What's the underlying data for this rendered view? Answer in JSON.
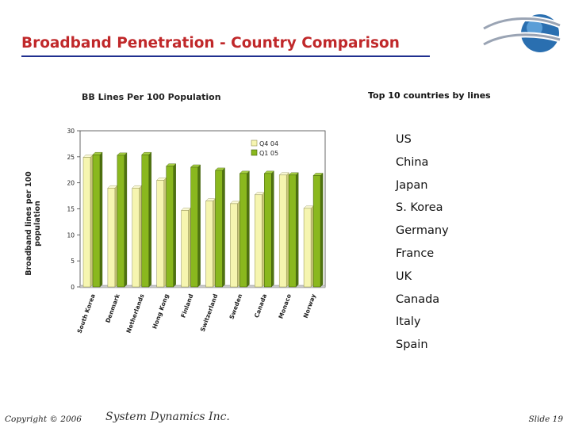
{
  "slide": {
    "title": "Broadband Penetration - Country Comparison"
  },
  "top10": {
    "title": "Top 10 countries by lines",
    "countries": [
      "US",
      "China",
      "Japan",
      "S. Korea",
      "Germany",
      "France",
      "UK",
      "Canada",
      "Italy",
      "Spain"
    ]
  },
  "footer": {
    "copyright": "Copyright © 2006",
    "company": "System Dynamics Inc.",
    "slide": "Slide 19"
  },
  "colors": {
    "title": "#c0282a",
    "rule": "#1f2f8f",
    "q4_04_bar": "#f6f5b0",
    "q1_05_bar": "#8ab81e",
    "logo_blue": "#2a6fb0"
  },
  "chart_data": {
    "type": "bar",
    "title": "BB Lines Per 100 Population",
    "ylabel": "Broadband lines per 100 population",
    "xlabel": "",
    "categories": [
      "South Korea",
      "Denmark",
      "Netherlands",
      "Hong Kong",
      "Finland",
      "Switzerland",
      "Sweden",
      "Canada",
      "Monaco",
      "Norway"
    ],
    "series": [
      {
        "name": "Q4 04",
        "values": [
          24.9,
          19.0,
          19.0,
          20.5,
          14.7,
          16.5,
          16.0,
          17.7,
          21.5,
          15.1
        ]
      },
      {
        "name": "Q1 05",
        "values": [
          25.4,
          25.3,
          25.4,
          23.2,
          23.0,
          22.4,
          21.8,
          21.8,
          21.5,
          21.4
        ]
      }
    ],
    "ylim": [
      0,
      30
    ],
    "yticks": [
      0,
      5,
      10,
      15,
      20,
      25,
      30
    ],
    "grid": false,
    "legend": "top-right"
  }
}
